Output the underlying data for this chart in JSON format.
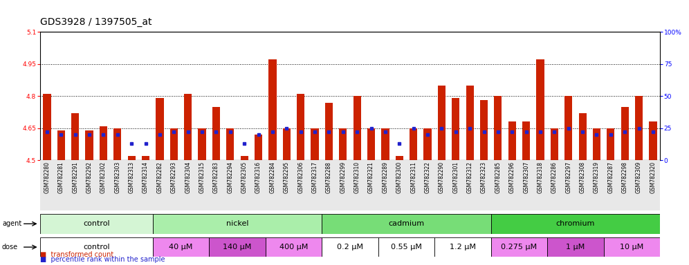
{
  "title": "GDS3928 / 1397505_at",
  "samples": [
    "GSM782280",
    "GSM782281",
    "GSM782291",
    "GSM782292",
    "GSM782302",
    "GSM782303",
    "GSM782313",
    "GSM782314",
    "GSM782282",
    "GSM782293",
    "GSM782304",
    "GSM782315",
    "GSM782283",
    "GSM782294",
    "GSM782305",
    "GSM782316",
    "GSM782284",
    "GSM782295",
    "GSM782306",
    "GSM782317",
    "GSM782288",
    "GSM782299",
    "GSM782310",
    "GSM782321",
    "GSM782289",
    "GSM782300",
    "GSM782311",
    "GSM782322",
    "GSM782290",
    "GSM782301",
    "GSM782312",
    "GSM782323",
    "GSM782285",
    "GSM782296",
    "GSM782307",
    "GSM782318",
    "GSM782286",
    "GSM782297",
    "GSM782308",
    "GSM782319",
    "GSM782287",
    "GSM782298",
    "GSM782309",
    "GSM782320"
  ],
  "red_values": [
    4.81,
    4.64,
    4.72,
    4.64,
    4.66,
    4.65,
    4.52,
    4.52,
    4.79,
    4.65,
    4.81,
    4.65,
    4.75,
    4.65,
    4.52,
    4.62,
    4.97,
    4.65,
    4.81,
    4.65,
    4.77,
    4.65,
    4.8,
    4.65,
    4.65,
    4.52,
    4.65,
    4.65,
    4.85,
    4.79,
    4.85,
    4.78,
    4.8,
    4.68,
    4.68,
    4.97,
    4.65,
    4.8,
    4.72,
    4.65,
    4.65,
    4.75,
    4.8,
    4.68
  ],
  "percentile_values": [
    22,
    20,
    20,
    20,
    20,
    20,
    13,
    13,
    20,
    22,
    22,
    22,
    22,
    22,
    13,
    20,
    22,
    25,
    22,
    22,
    22,
    22,
    22,
    25,
    22,
    13,
    25,
    20,
    25,
    22,
    25,
    22,
    22,
    22,
    22,
    22,
    22,
    25,
    22,
    20,
    20,
    22,
    25,
    22
  ],
  "agent_groups": [
    {
      "label": "control",
      "start": 0,
      "end": 8,
      "color": "#d4f5d4"
    },
    {
      "label": "nickel",
      "start": 8,
      "end": 20,
      "color": "#aaeeaa"
    },
    {
      "label": "cadmium",
      "start": 20,
      "end": 32,
      "color": "#77dd77"
    },
    {
      "label": "chromium",
      "start": 32,
      "end": 44,
      "color": "#44cc44"
    }
  ],
  "dose_groups": [
    {
      "label": "control",
      "start": 0,
      "end": 8,
      "color": "#ffffff"
    },
    {
      "label": "40 μM",
      "start": 8,
      "end": 12,
      "color": "#ee88ee"
    },
    {
      "label": "140 μM",
      "start": 12,
      "end": 16,
      "color": "#cc55cc"
    },
    {
      "label": "400 μM",
      "start": 16,
      "end": 20,
      "color": "#ee88ee"
    },
    {
      "label": "0.2 μM",
      "start": 20,
      "end": 24,
      "color": "#ffffff"
    },
    {
      "label": "0.55 μM",
      "start": 24,
      "end": 28,
      "color": "#ffffff"
    },
    {
      "label": "1.2 μM",
      "start": 28,
      "end": 32,
      "color": "#ffffff"
    },
    {
      "label": "0.275 μM",
      "start": 32,
      "end": 36,
      "color": "#ee88ee"
    },
    {
      "label": "1 μM",
      "start": 36,
      "end": 40,
      "color": "#cc55cc"
    },
    {
      "label": "10 μM",
      "start": 40,
      "end": 44,
      "color": "#ee88ee"
    }
  ],
  "ylim": [
    4.5,
    5.1
  ],
  "yticks_left": [
    4.5,
    4.65,
    4.8,
    4.95,
    5.1
  ],
  "yticks_right": [
    0,
    25,
    50,
    75,
    100
  ],
  "bar_color": "#cc2200",
  "dot_color": "#2222cc",
  "bg_color": "#e8e8e8",
  "tick_fontsize": 6.5,
  "sample_fontsize": 5.5,
  "row_fontsize": 8,
  "title_fontsize": 10
}
